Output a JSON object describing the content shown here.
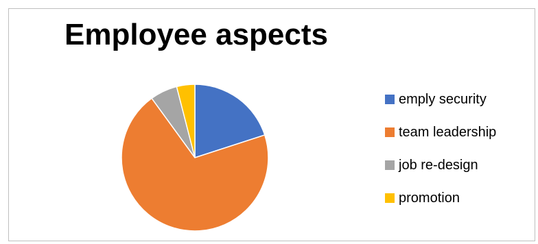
{
  "chart_data": {
    "type": "pie",
    "title": "Employee aspects",
    "categories": [
      "emply security",
      "team leadership",
      "job re-design",
      "promotion"
    ],
    "values": [
      20,
      70,
      6,
      4
    ],
    "colors": [
      "#4472c4",
      "#ed7d31",
      "#a5a5a5",
      "#ffc000"
    ],
    "legend_position": "right"
  }
}
